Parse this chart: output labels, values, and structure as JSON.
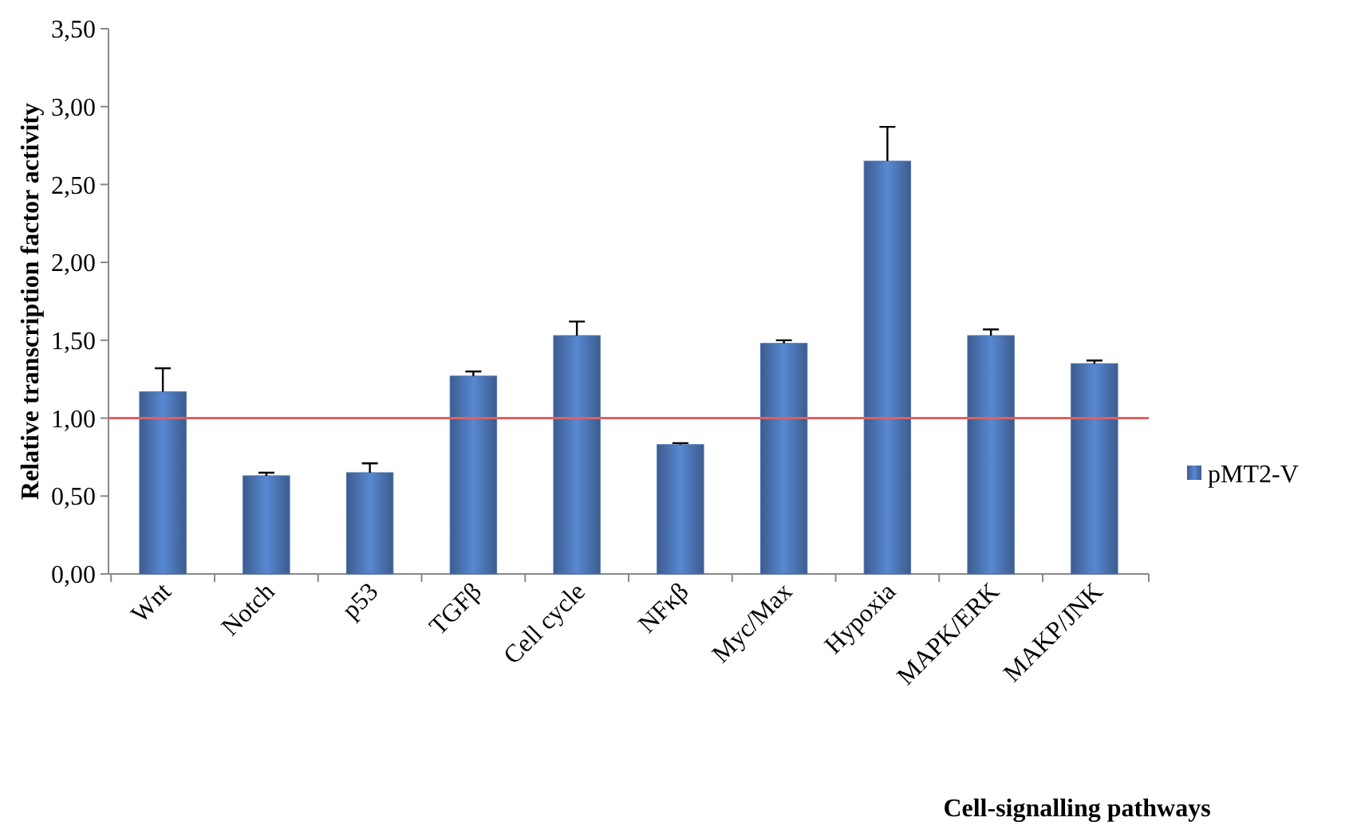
{
  "chart_data": {
    "type": "bar",
    "xlabel": "Cell-signalling pathways",
    "ylabel": "Relative transcription factor activity",
    "categories": [
      "Wnt",
      "Notch",
      "p53",
      "TGFβ",
      "Cell cycle",
      "NFκβ",
      "Myc/Max",
      "Hypoxia",
      "MAPK/ERK",
      "MAKP/JNK"
    ],
    "series": [
      {
        "name": "pMT2-V",
        "color": "#4a72b0",
        "values": [
          1.17,
          0.63,
          0.65,
          1.27,
          1.53,
          0.83,
          1.48,
          2.65,
          1.53,
          1.35
        ],
        "errors": [
          [
            1.17,
            1.32
          ],
          [
            0.63,
            0.65
          ],
          [
            0.65,
            0.71
          ],
          [
            1.27,
            1.3
          ],
          [
            1.53,
            1.62
          ],
          [
            0.83,
            0.84
          ],
          [
            1.48,
            1.5
          ],
          [
            2.65,
            2.87
          ],
          [
            1.53,
            1.57
          ],
          [
            1.35,
            1.37
          ]
        ]
      }
    ],
    "ylim": [
      0,
      3.5
    ],
    "yticks": [
      {
        "value": 0,
        "label": "0,00"
      },
      {
        "value": 0.5,
        "label": "0,50"
      },
      {
        "value": 1,
        "label": "1,00"
      },
      {
        "value": 1.5,
        "label": "1,50"
      },
      {
        "value": 2,
        "label": "2,00"
      },
      {
        "value": 2.5,
        "label": "2,50"
      },
      {
        "value": 3,
        "label": "3,00"
      },
      {
        "value": 3.5,
        "label": "3,50"
      }
    ],
    "ref_lines": [
      {
        "axis": "y",
        "value": 1,
        "color": "#e06060"
      }
    ],
    "legend": "right"
  }
}
